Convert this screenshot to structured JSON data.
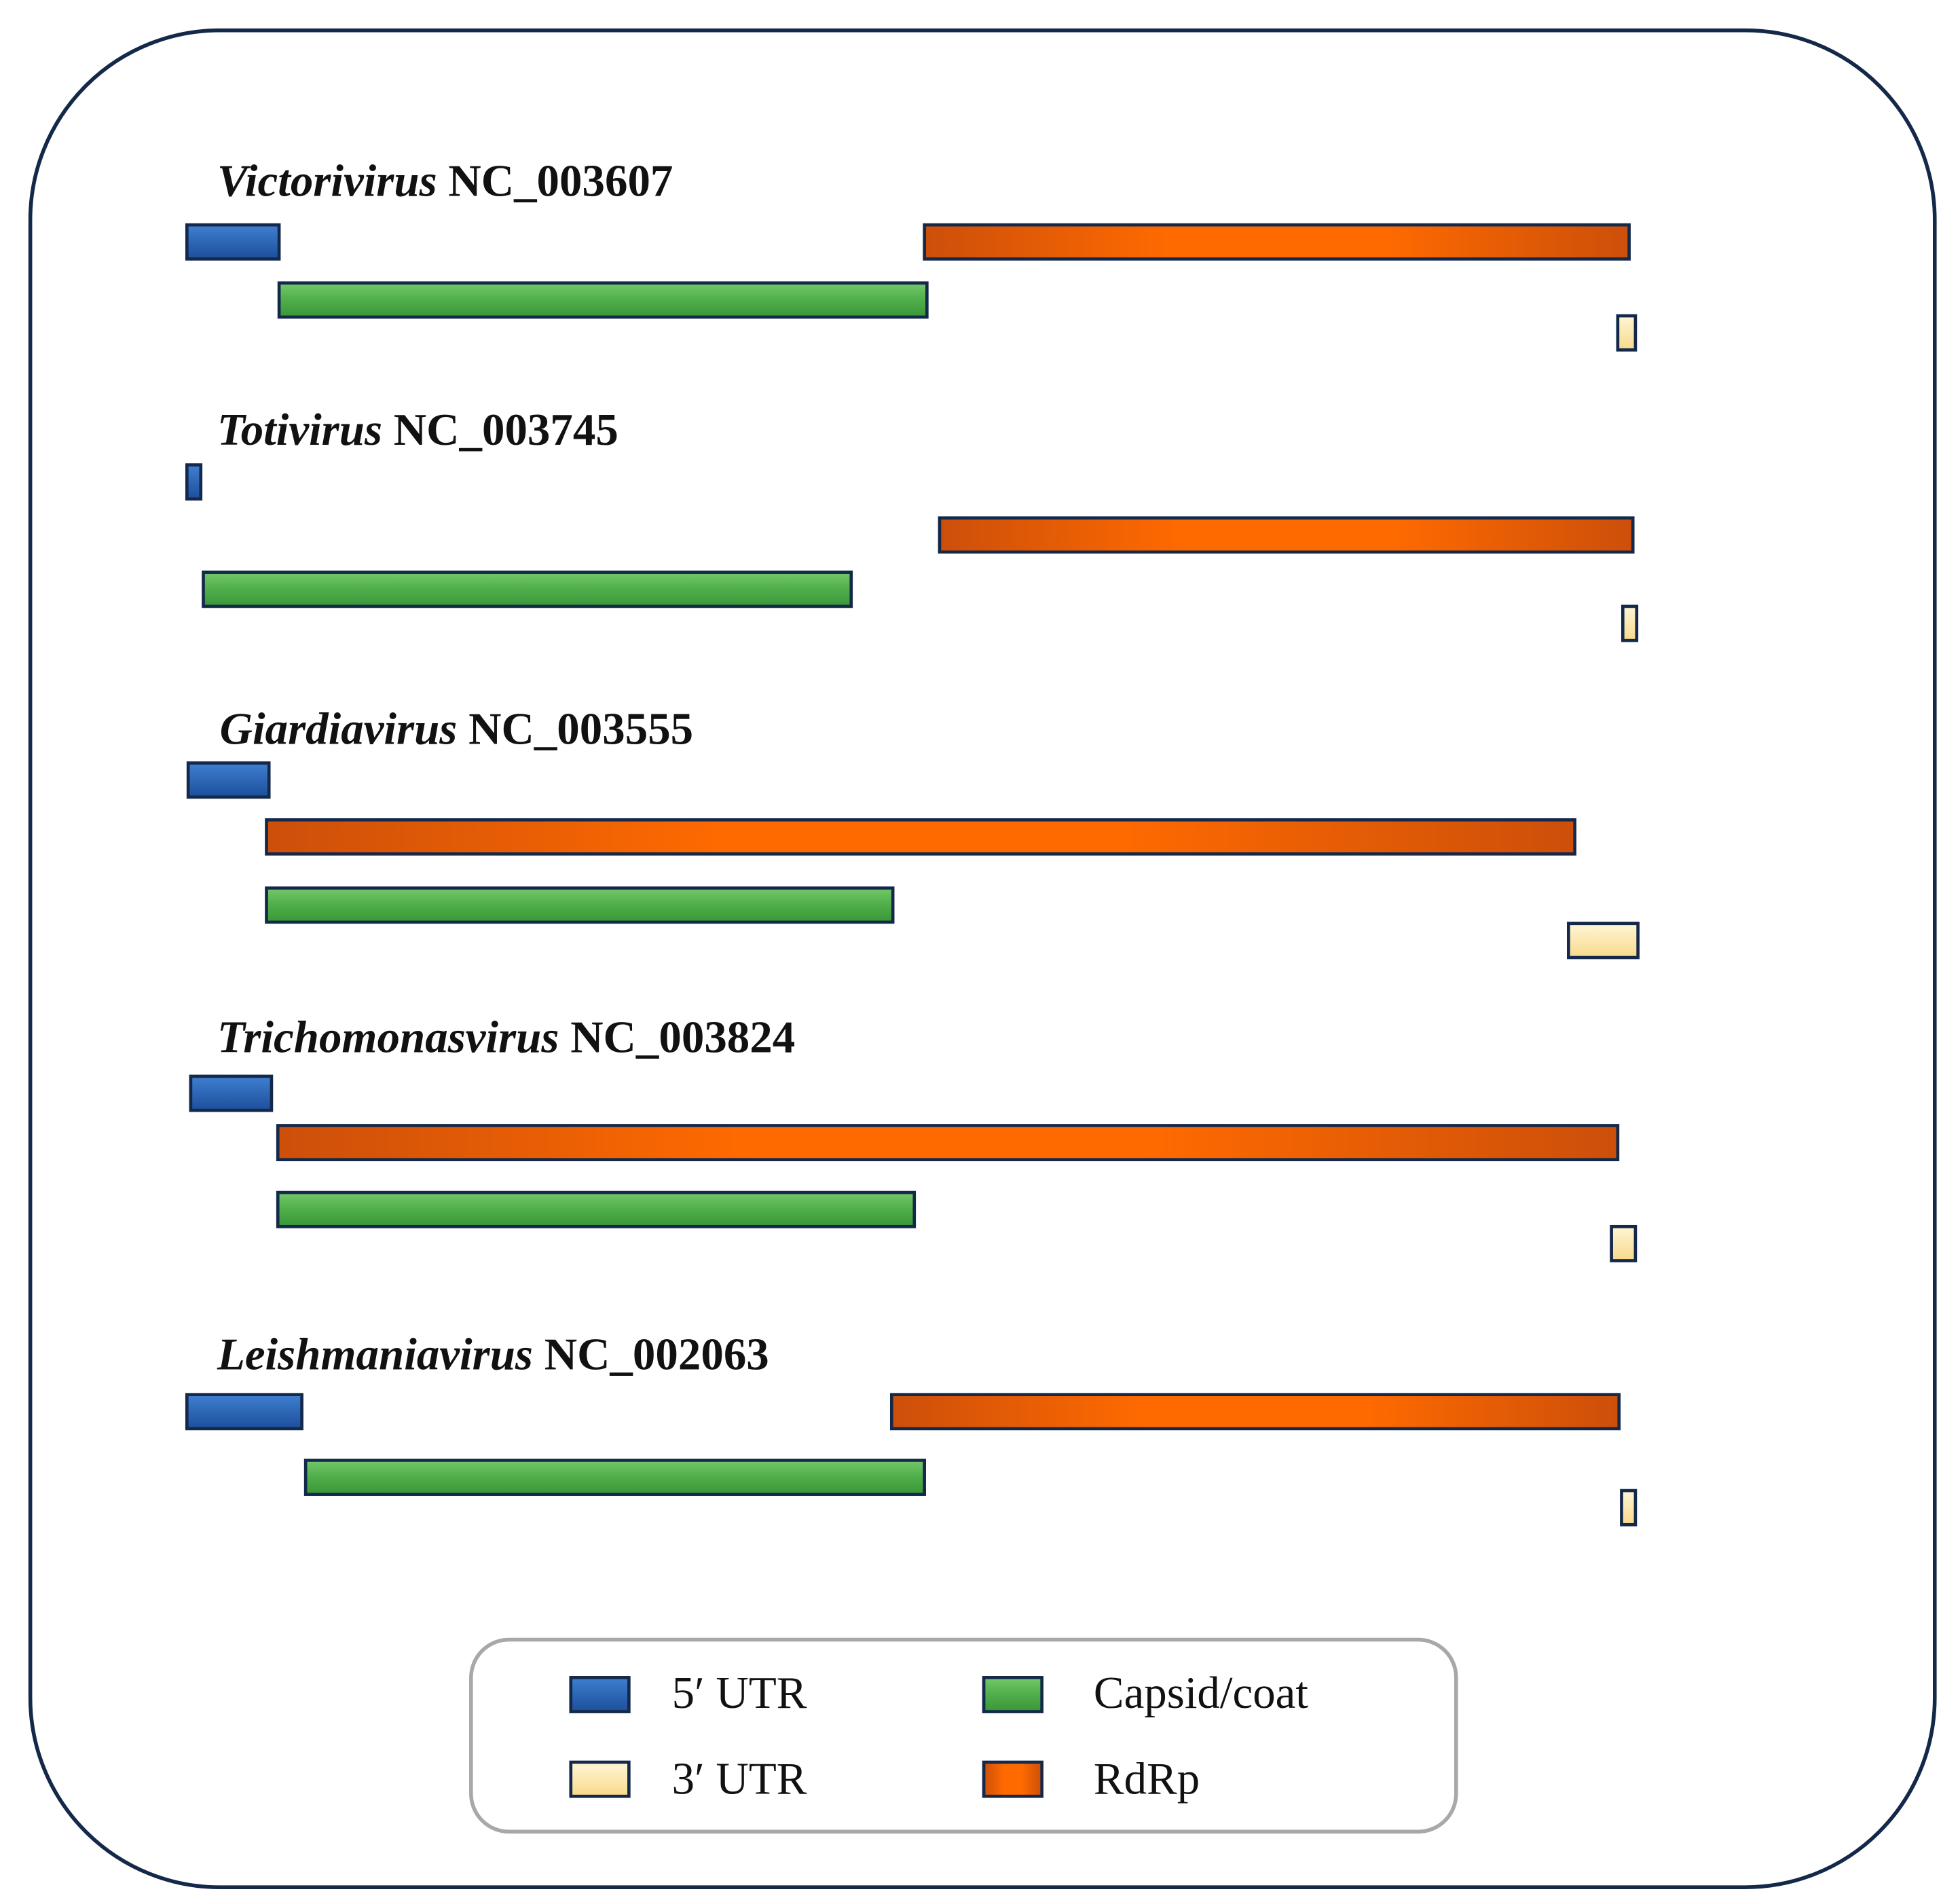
{
  "genomes": [
    {
      "genus": "Victorivirus",
      "accession": "NC_003607"
    },
    {
      "genus": "Totivirus",
      "accession": "NC_003745"
    },
    {
      "genus": "Giardiavirus",
      "accession": "NC_003555"
    },
    {
      "genus": "Trichomonasvirus",
      "accession": "NC_003824"
    },
    {
      "genus": "Leishmaniavirus",
      "accession": "NC_002063"
    }
  ],
  "legend": [
    {
      "label": "5′ UTR"
    },
    {
      "label": "Capsid/coat"
    },
    {
      "label": "3′ UTR"
    },
    {
      "label": "RdRp"
    }
  ]
}
